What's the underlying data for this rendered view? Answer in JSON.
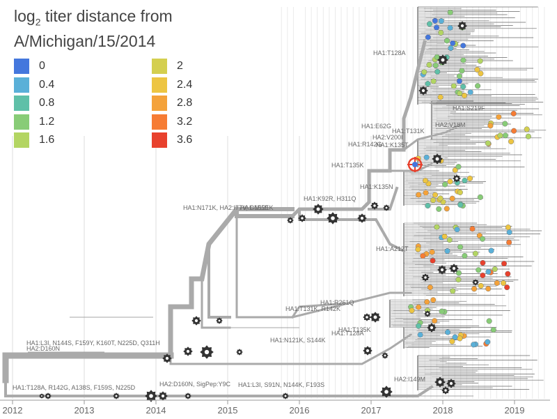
{
  "chart_data": {
    "type": "phylogenetic-tree",
    "title_lines": [
      "log",
      "2",
      " titer distance from",
      "A/Michigan/15/2014"
    ],
    "legend": [
      {
        "label": "0",
        "color": "#4477dd"
      },
      {
        "label": "0.4",
        "color": "#5ab0d8"
      },
      {
        "label": "0.8",
        "color": "#5fc0a8"
      },
      {
        "label": "1.2",
        "color": "#88cc77"
      },
      {
        "label": "1.6",
        "color": "#b3d562"
      },
      {
        "label": "2",
        "color": "#d4cf4f"
      },
      {
        "label": "2.4",
        "color": "#edc542"
      },
      {
        "label": "2.8",
        "color": "#f4a23a"
      },
      {
        "label": "3.2",
        "color": "#f67c34"
      },
      {
        "label": "3.6",
        "color": "#e8412d"
      }
    ],
    "x_axis": {
      "ticks": [
        "2012",
        "2013",
        "2014",
        "2015",
        "2016",
        "2017",
        "2018",
        "2019"
      ],
      "range": [
        2012.0,
        2019.45
      ]
    },
    "branch_labels": [
      "HA1:T128A",
      "HA1:S219F",
      "HA1:E62G",
      "HA1:T131K",
      "HA2:V18M",
      "HA2:V200I",
      "HA1:R142G",
      "HA1:K135T",
      "HA1:T135K",
      "HA1:K135N",
      "HA1:K92R, H311Q",
      "HA1:N121K",
      "HA1:N171K, HA2:I77V, G155E",
      "HA1:A212T",
      "HA1:R261Q",
      "HA1:T131K, R142K",
      "HA1:T135K",
      "HA1:T128A",
      "HA1:N121K, S144K",
      "HA1:L3I, N144S, F159Y, K160T, N225D, Q311H",
      "HA2:D160N",
      "HA1:T128A, R142G, A138S, F159S, N225D",
      "HA2:D160N, SigPep:Y9C",
      "HA1:L3I, S91N, N144K, F193S",
      "HA2:I149M"
    ]
  }
}
